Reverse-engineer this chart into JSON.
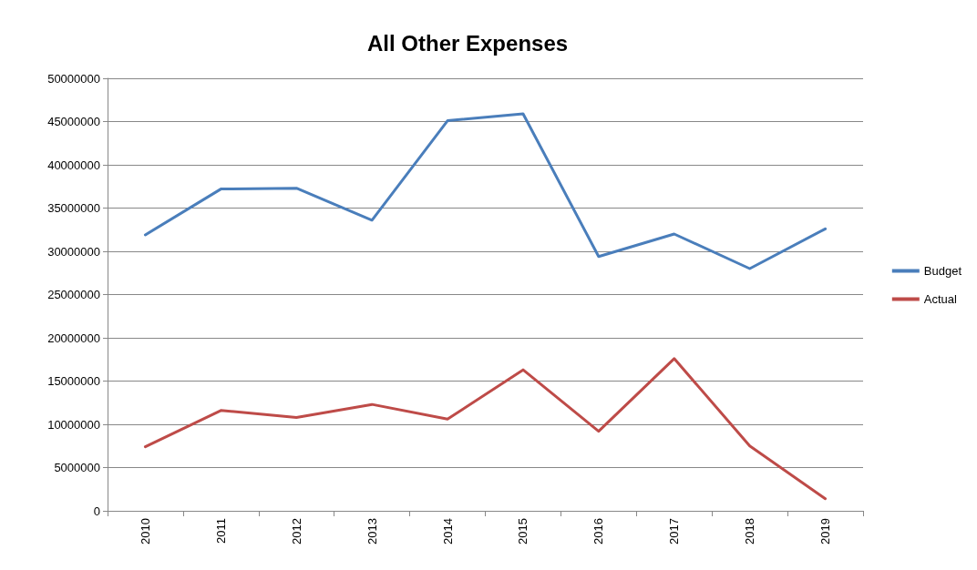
{
  "chart_data": {
    "type": "line",
    "title": "All Other Expenses",
    "categories": [
      "2010",
      "2011",
      "2012",
      "2013",
      "2014",
      "2015",
      "2016",
      "2017",
      "2018",
      "2019"
    ],
    "series": [
      {
        "name": "Budget",
        "color": "#4a7ebb",
        "values": [
          31900000,
          37200000,
          37300000,
          33600000,
          45100000,
          45900000,
          29400000,
          32000000,
          28000000,
          32600000
        ]
      },
      {
        "name": "Actual",
        "color": "#be4b48",
        "values": [
          7400000,
          11600000,
          10800000,
          12300000,
          10600000,
          16300000,
          9200000,
          17600000,
          7500000,
          1400000
        ]
      }
    ],
    "ylim": [
      0,
      50000000
    ],
    "yticks": [
      0,
      5000000,
      10000000,
      15000000,
      20000000,
      25000000,
      30000000,
      35000000,
      40000000,
      45000000,
      50000000
    ],
    "grid": "y",
    "legend": "right",
    "marker": "none",
    "line_style": "solid"
  }
}
